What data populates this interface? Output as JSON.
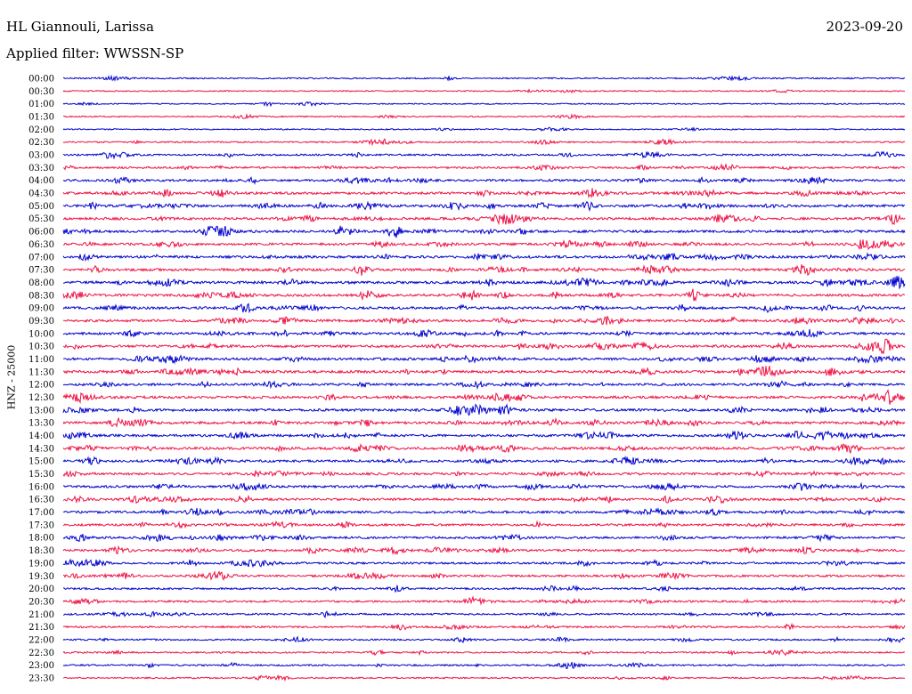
{
  "header": {
    "station": "HL Giannouli, Larissa",
    "date": "2023-09-20",
    "filter_label": "Applied filter: WWSSN-SP"
  },
  "axis": {
    "channel_label": "HNZ - 25000"
  },
  "colors": {
    "trace_a": "#0000cc",
    "trace_b": "#ee1144",
    "background": "#ffffff",
    "text": "#000000"
  },
  "chart_data": {
    "type": "line",
    "title": "HL Giannouli, Larissa",
    "subtitle": "Applied filter: WWSSN-SP",
    "ylabel": "HNZ - 25000",
    "xlabel": "",
    "date": "2023-09-20",
    "grid": false,
    "legend": "none",
    "row_interval_minutes": 30,
    "row_labels": [
      "00:00",
      "00:30",
      "01:00",
      "01:30",
      "02:00",
      "02:30",
      "03:00",
      "03:30",
      "04:00",
      "04:30",
      "05:00",
      "05:30",
      "06:00",
      "06:30",
      "07:00",
      "07:30",
      "08:00",
      "08:30",
      "09:00",
      "09:30",
      "10:00",
      "10:30",
      "11:00",
      "11:30",
      "12:00",
      "12:30",
      "13:00",
      "13:30",
      "14:00",
      "14:30",
      "15:00",
      "15:30",
      "16:00",
      "16:30",
      "17:00",
      "17:30",
      "18:00",
      "18:30",
      "19:00",
      "19:30",
      "20:00",
      "20:30",
      "21:00",
      "21:30",
      "22:00",
      "22:30",
      "23:00",
      "23:30"
    ],
    "relative_activity": [
      0.2,
      0.15,
      0.15,
      0.15,
      0.15,
      0.25,
      0.35,
      0.4,
      0.5,
      0.6,
      0.6,
      0.6,
      0.6,
      0.55,
      0.6,
      0.6,
      0.65,
      0.6,
      0.6,
      0.6,
      0.6,
      0.6,
      0.6,
      0.65,
      0.55,
      0.6,
      0.6,
      0.6,
      0.6,
      0.6,
      0.55,
      0.55,
      0.55,
      0.55,
      0.55,
      0.5,
      0.5,
      0.5,
      0.45,
      0.45,
      0.4,
      0.4,
      0.35,
      0.35,
      0.3,
      0.3,
      0.3,
      0.25
    ]
  }
}
